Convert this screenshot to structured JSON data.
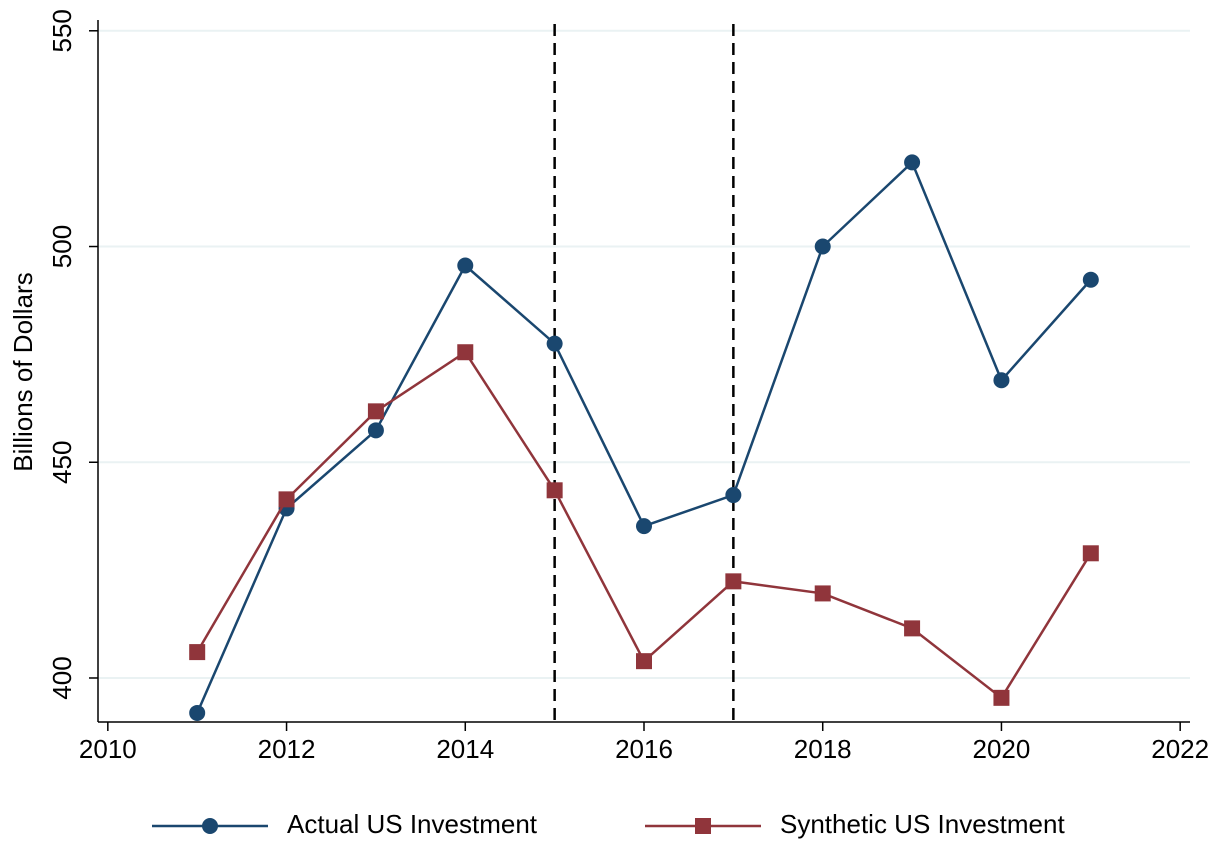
{
  "chart_data": {
    "type": "line",
    "x": [
      2011,
      2012,
      2013,
      2014,
      2015,
      2016,
      2017,
      2018,
      2019,
      2020,
      2021
    ],
    "series": [
      {
        "name": "Actual US Investment",
        "color": "#1a476f",
        "marker": "circle",
        "values": [
          391.9,
          439.3,
          457.4,
          495.6,
          477.5,
          435.2,
          442.4,
          500,
          519.5,
          469,
          492.3
        ]
      },
      {
        "name": "Synthetic US Investment",
        "color": "#90353b",
        "marker": "square",
        "values": [
          406,
          441.4,
          461.8,
          475.5,
          443.5,
          403.9,
          422.4,
          419.6,
          411.5,
          395.4,
          428.9
        ]
      }
    ],
    "ylabel": "Billions of Dollars",
    "xlim": [
      2009.89,
      2022.11
    ],
    "xticks": [
      2010,
      2012,
      2014,
      2016,
      2018,
      2020,
      2022
    ],
    "ylim": [
      389.8,
      552.5
    ],
    "yticks": [
      400,
      450,
      500,
      550
    ],
    "vlines": [
      2015,
      2017
    ],
    "grid": true,
    "legend": "bottom"
  }
}
